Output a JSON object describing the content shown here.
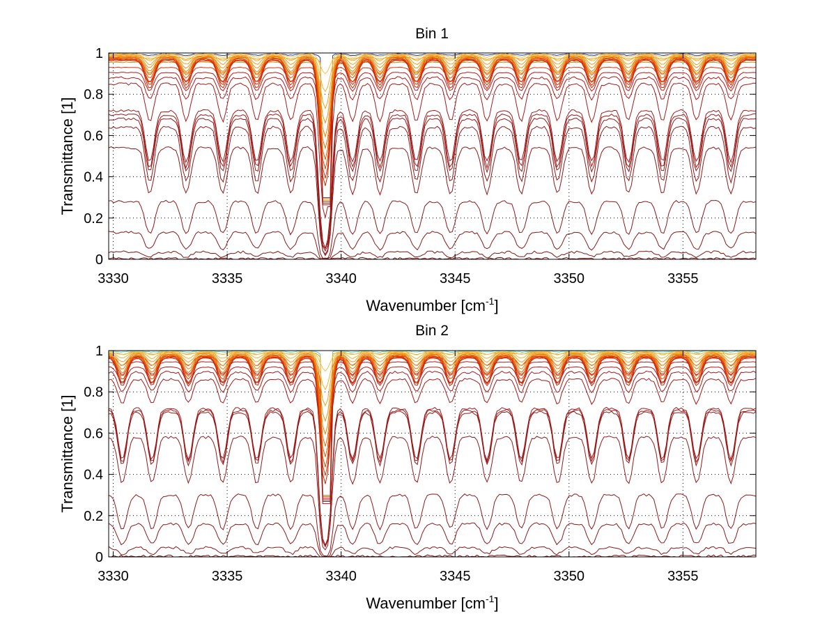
{
  "chart_data": [
    {
      "type": "line",
      "title": "Bin 1",
      "xlabel": "Wavenumber [cm",
      "xlabel_superscript": "-1",
      "xlabel_suffix": "]",
      "ylabel": "Transmittance [1]",
      "xlim": [
        3329.8,
        3358.2
      ],
      "ylim": [
        0,
        1
      ],
      "xticks": [
        3330,
        3335,
        3340,
        3345,
        3350,
        3355
      ],
      "xtick_labels": [
        "3330",
        "3335",
        "3340",
        "3345",
        "3350",
        "3355"
      ],
      "yticks": [
        0,
        0.2,
        0.4,
        0.6,
        0.8,
        1
      ],
      "ytick_labels": [
        "0",
        "0.2",
        "0.4",
        "0.6",
        "0.8",
        "1"
      ],
      "grid": "dotted",
      "legend": "none",
      "line_band_x": [
        3339.2,
        3339.5
      ],
      "absorption_line_centers": [
        3331.6,
        3333.2,
        3334.8,
        3336.3,
        3337.8,
        3339.3,
        3340.5,
        3341.7,
        3343.3,
        3344.8,
        3346.4,
        3347.9,
        3349.5,
        3351.0,
        3352.6,
        3354.1,
        3355.6,
        3357.1
      ],
      "series_baselines": [
        0.995,
        0.98,
        0.955,
        0.93,
        0.905,
        0.88,
        0.85,
        0.72,
        0.7,
        0.68,
        0.64,
        0.54,
        0.28,
        0.13,
        0.035,
        0.003
      ],
      "series_colors": [
        "#1a3aa8",
        "#f5a000",
        "#f08000",
        "#d83010",
        "#c01818",
        "#b01818",
        "#a81818",
        "#a01818",
        "#9c1818",
        "#981818",
        "#941818",
        "#901818",
        "#8c1818",
        "#881818",
        "#841414",
        "#7a0a0a"
      ]
    },
    {
      "type": "line",
      "title": "Bin 2",
      "xlabel": "Wavenumber [cm",
      "xlabel_superscript": "-1",
      "xlabel_suffix": "]",
      "ylabel": "Transmittance [1]",
      "xlim": [
        3329.8,
        3358.2
      ],
      "ylim": [
        0,
        1
      ],
      "xticks": [
        3330,
        3335,
        3340,
        3345,
        3350,
        3355
      ],
      "xtick_labels": [
        "3330",
        "3335",
        "3340",
        "3345",
        "3350",
        "3355"
      ],
      "yticks": [
        0,
        0.2,
        0.4,
        0.6,
        0.8,
        1
      ],
      "ytick_labels": [
        "0",
        "0.2",
        "0.4",
        "0.6",
        "0.8",
        "1"
      ],
      "grid": "dotted",
      "legend": "none",
      "absorption_line_centers": [
        3330.4,
        3331.7,
        3333.3,
        3334.8,
        3336.3,
        3337.8,
        3339.3,
        3340.5,
        3341.7,
        3343.3,
        3344.8,
        3346.4,
        3347.9,
        3349.5,
        3351.0,
        3352.6,
        3354.1,
        3355.6,
        3357.1
      ],
      "series_baselines": [
        0.998,
        0.99,
        0.97,
        0.945,
        0.92,
        0.895,
        0.86,
        0.72,
        0.71,
        0.7,
        0.58,
        0.3,
        0.16,
        0.045,
        0.004
      ],
      "series_colors": [
        "#50d0c0",
        "#f0a000",
        "#d83010",
        "#c01818",
        "#b01818",
        "#a81818",
        "#a41818",
        "#a01818",
        "#9c1818",
        "#981818",
        "#941818",
        "#901818",
        "#8c1818",
        "#881818",
        "#7a0a0a"
      ]
    }
  ]
}
